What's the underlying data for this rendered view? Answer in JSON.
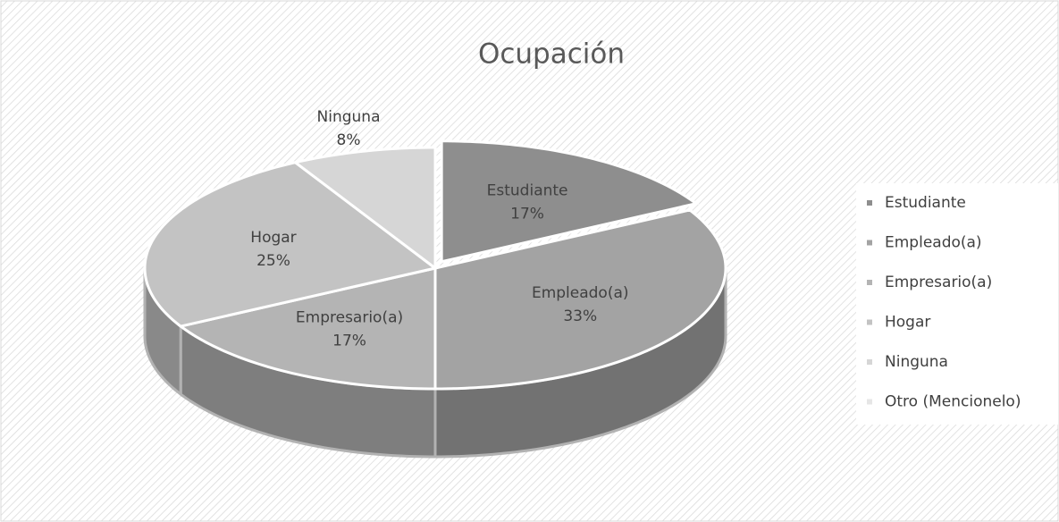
{
  "chart_data": {
    "type": "pie3d",
    "title": "Ocupación",
    "categories": [
      "Estudiante",
      "Empleado(a)",
      "Empresario(a)",
      "Hogar",
      "Ninguna",
      "Otro (Mencionelo)"
    ],
    "values": [
      17,
      33,
      17,
      25,
      8,
      0
    ],
    "value_labels": [
      "17%",
      "33%",
      "17%",
      "25%",
      "8%",
      null
    ],
    "colors": [
      "#8e8e8e",
      "#a3a3a3",
      "#b4b4b4",
      "#c3c3c3",
      "#d6d6d6",
      "#e6e6e6"
    ],
    "legend": "right"
  }
}
